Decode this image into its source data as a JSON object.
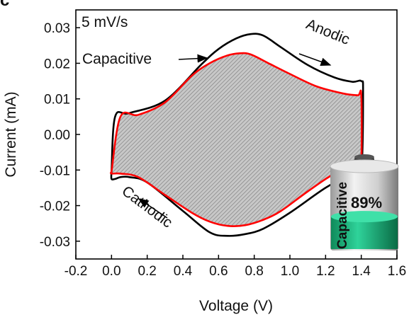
{
  "chart_data": {
    "type": "line",
    "panel_label": "c",
    "xlabel": "Voltage (V)",
    "ylabel": "Current (mA)",
    "xlim": [
      -0.2,
      1.6
    ],
    "ylim": [
      -0.035,
      0.035
    ],
    "xticks": [
      "-0.2",
      "0.0",
      "0.2",
      "0.4",
      "0.6",
      "0.8",
      "1.0",
      "1.2",
      "1.4",
      "1.6"
    ],
    "yticks": [
      "0.03",
      "0.02",
      "0.01",
      "0.00",
      "-0.01",
      "-0.02",
      "-0.03"
    ],
    "grid": false,
    "annotations": {
      "scan_rate": "5 mV/s",
      "capacitive_label": "Capacitive",
      "anodic_label": "Anodic",
      "cathodic_label": "Cathodic",
      "battery_label": "Capacitive",
      "battery_percent": "89%"
    },
    "battery_fill_fraction": 0.89,
    "series": [
      {
        "color": "#000000",
        "x": [
          0.0,
          0.02,
          0.1,
          0.3,
          0.5,
          0.6,
          0.7,
          0.78,
          0.85,
          0.95,
          1.1,
          1.25,
          1.35,
          1.4,
          1.41,
          1.4,
          1.35,
          1.2,
          1.0,
          0.85,
          0.75,
          0.65,
          0.55,
          0.4,
          0.2,
          0.1,
          0.05,
          0.02,
          0.0,
          0.0
        ],
        "y": [
          -0.0105,
          0.005,
          0.006,
          0.0095,
          0.0195,
          0.024,
          0.027,
          0.0282,
          0.0278,
          0.0245,
          0.0195,
          0.016,
          0.0148,
          0.015,
          0.012,
          -0.01,
          -0.011,
          -0.015,
          -0.022,
          -0.0265,
          -0.028,
          -0.0285,
          -0.0275,
          -0.0215,
          -0.0135,
          -0.012,
          -0.012,
          -0.0125,
          -0.0125,
          -0.0105
        ]
      },
      {
        "color": "#ff0000",
        "x": [
          0.0,
          0.05,
          0.15,
          0.3,
          0.45,
          0.55,
          0.65,
          0.72,
          0.78,
          0.88,
          1.0,
          1.15,
          1.3,
          1.38,
          1.4,
          1.4,
          1.38,
          1.25,
          1.1,
          0.95,
          0.85,
          0.75,
          0.65,
          0.55,
          0.45,
          0.3,
          0.15,
          0.05,
          0.0,
          0.0
        ],
        "y": [
          -0.0105,
          0.005,
          0.0055,
          0.009,
          0.0165,
          0.02,
          0.0222,
          0.0228,
          0.0225,
          0.02,
          0.017,
          0.0135,
          0.0115,
          0.011,
          0.011,
          -0.0075,
          -0.0085,
          -0.011,
          -0.016,
          -0.0215,
          -0.024,
          -0.0255,
          -0.0257,
          -0.0245,
          -0.022,
          -0.017,
          -0.012,
          -0.011,
          -0.011,
          -0.0105
        ]
      }
    ]
  }
}
